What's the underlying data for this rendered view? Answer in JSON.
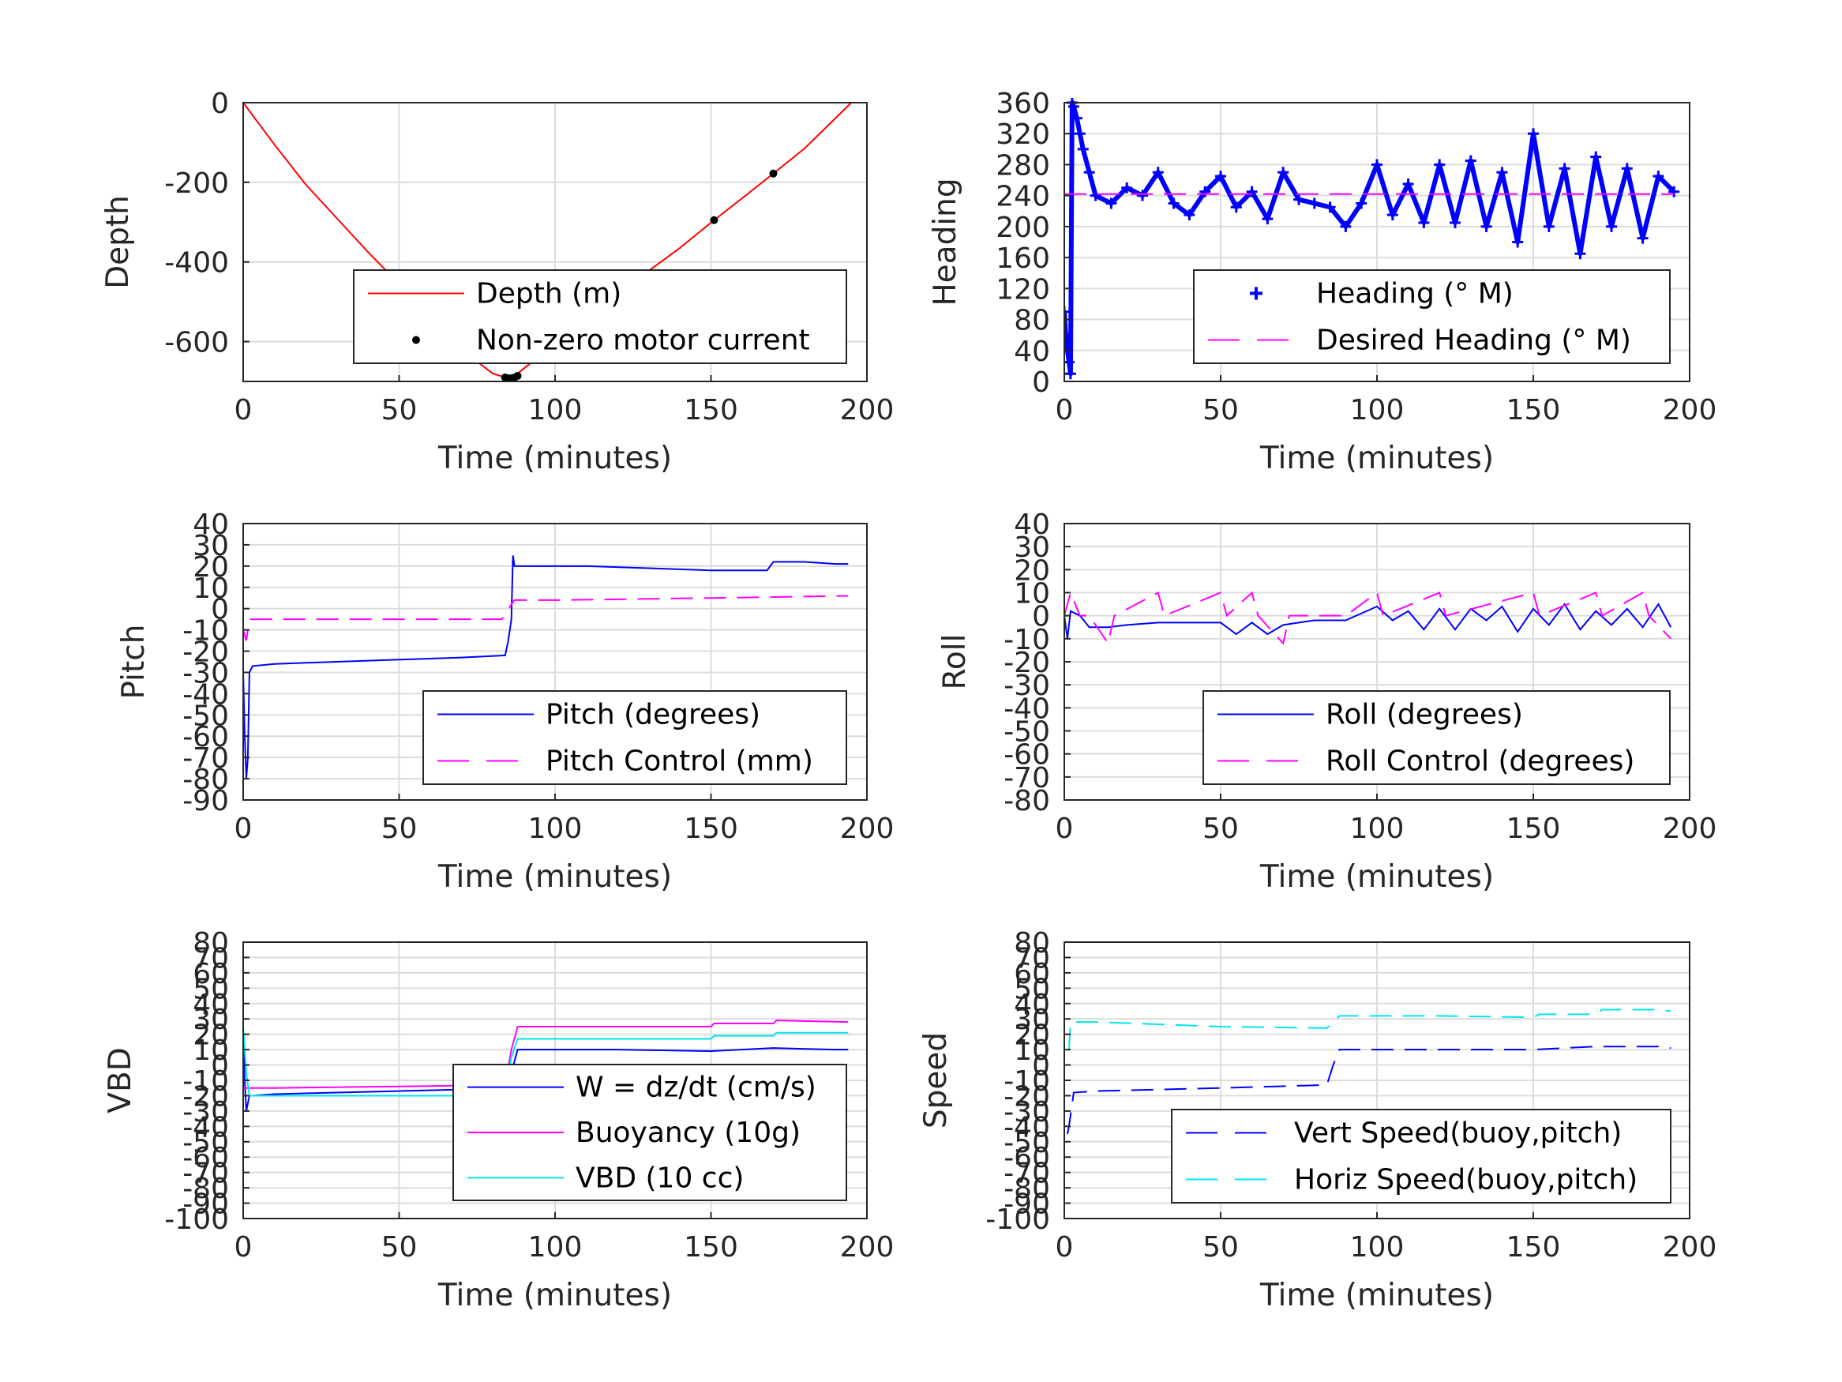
{
  "chart_data": [
    {
      "id": "depth",
      "type": "line",
      "xlabel": "Time (minutes)",
      "ylabel": "Depth",
      "xlim": [
        0,
        200
      ],
      "ylim": [
        -700,
        0
      ],
      "xticks": [
        0,
        50,
        100,
        150,
        200
      ],
      "yticks": [
        0,
        -200,
        -400,
        -600
      ],
      "grid": true,
      "legend_position": "lower-right",
      "series": [
        {
          "name": "Depth (m)",
          "color": "#ff0000",
          "style": "solid",
          "x": [
            0,
            10,
            20,
            30,
            40,
            50,
            60,
            70,
            80,
            84,
            86,
            88,
            100,
            120,
            140,
            151,
            160,
            170,
            180,
            195
          ],
          "y": [
            0,
            -105,
            -205,
            -290,
            -375,
            -455,
            -540,
            -620,
            -680,
            -690,
            -690,
            -680,
            -605,
            -480,
            -365,
            -295,
            -240,
            -178,
            -115,
            0
          ]
        },
        {
          "name": "Non-zero motor current",
          "color": "#000000",
          "style": "markers",
          "x": [
            84,
            85,
            86,
            87,
            88,
            151,
            170
          ],
          "y": [
            -690,
            -692,
            -692,
            -690,
            -686,
            -295,
            -178
          ]
        }
      ]
    },
    {
      "id": "heading",
      "type": "line",
      "xlabel": "Time (minutes)",
      "ylabel": "Heading",
      "xlim": [
        0,
        200
      ],
      "ylim": [
        0,
        360
      ],
      "xticks": [
        0,
        50,
        100,
        150,
        200
      ],
      "yticks": [
        0,
        40,
        80,
        120,
        160,
        200,
        240,
        280,
        320,
        360
      ],
      "grid": true,
      "legend_position": "lower-right",
      "series": [
        {
          "name": "Heading (° M)",
          "color": "#0000ff",
          "style": "plus-markers",
          "x": [
            0,
            0.5,
            1,
            1.5,
            2,
            2.5,
            3,
            4,
            5,
            6,
            8,
            10,
            15,
            20,
            25,
            30,
            35,
            40,
            45,
            50,
            55,
            60,
            65,
            70,
            75,
            80,
            85,
            90,
            95,
            100,
            105,
            110,
            115,
            120,
            125,
            130,
            135,
            140,
            145,
            150,
            155,
            160,
            165,
            170,
            175,
            180,
            185,
            190,
            195
          ],
          "y": [
            90,
            60,
            40,
            25,
            10,
            360,
            355,
            340,
            320,
            300,
            270,
            240,
            230,
            250,
            240,
            270,
            230,
            215,
            245,
            265,
            225,
            245,
            210,
            270,
            235,
            230,
            225,
            200,
            230,
            280,
            215,
            255,
            205,
            280,
            205,
            285,
            200,
            270,
            180,
            320,
            200,
            275,
            165,
            290,
            200,
            275,
            185,
            265,
            245
          ]
        },
        {
          "name": "Desired Heading (° M)",
          "color": "#ff00ff",
          "style": "dashed",
          "x": [
            0,
            195
          ],
          "y": [
            242,
            242
          ]
        }
      ]
    },
    {
      "id": "pitch",
      "type": "line",
      "xlabel": "Time (minutes)",
      "ylabel": "Pitch",
      "xlim": [
        0,
        200
      ],
      "ylim": [
        -90,
        40
      ],
      "xticks": [
        0,
        50,
        100,
        150,
        200
      ],
      "yticks": [
        -90,
        -80,
        -70,
        -60,
        -50,
        -40,
        -30,
        -20,
        -10,
        0,
        10,
        20,
        30,
        40
      ],
      "grid": true,
      "legend_position": "lower-right",
      "series": [
        {
          "name": "Pitch (degrees)",
          "color": "#0000ff",
          "style": "solid",
          "x": [
            0,
            0.5,
            1,
            1.5,
            2,
            3,
            10,
            30,
            50,
            70,
            84,
            85,
            86,
            86.5,
            87,
            90,
            110,
            130,
            150,
            168,
            170,
            180,
            190,
            194
          ],
          "y": [
            -30,
            -60,
            -80,
            -70,
            -30,
            -27,
            -26,
            -25,
            -24,
            -23,
            -22,
            -15,
            -5,
            25,
            20,
            20,
            20,
            19,
            18,
            18,
            22,
            22,
            21,
            21
          ]
        },
        {
          "name": "Pitch Control (mm)",
          "color": "#ff00ff",
          "style": "dashed",
          "x": [
            0,
            1,
            1.5,
            2,
            83,
            84,
            86,
            87,
            100,
            150,
            194
          ],
          "y": [
            -10,
            -15,
            -10,
            -5,
            -5,
            -3,
            2,
            4,
            4,
            5,
            6
          ]
        }
      ]
    },
    {
      "id": "roll",
      "type": "line",
      "xlabel": "Time (minutes)",
      "ylabel": "Roll",
      "xlim": [
        0,
        200
      ],
      "ylim": [
        -80,
        40
      ],
      "xticks": [
        0,
        50,
        100,
        150,
        200
      ],
      "yticks": [
        -80,
        -70,
        -60,
        -50,
        -40,
        -30,
        -20,
        -10,
        0,
        10,
        20,
        30,
        40
      ],
      "grid": true,
      "legend_position": "lower-right",
      "series": [
        {
          "name": "Roll (degrees)",
          "color": "#0000ff",
          "style": "solid",
          "x": [
            0,
            1,
            2,
            5,
            8,
            14,
            20,
            30,
            40,
            50,
            55,
            60,
            65,
            70,
            80,
            90,
            100,
            105,
            110,
            115,
            120,
            125,
            130,
            135,
            140,
            145,
            150,
            155,
            160,
            165,
            170,
            175,
            180,
            185,
            190,
            194
          ],
          "y": [
            0,
            -10,
            2,
            0,
            -5,
            -5,
            -4,
            -3,
            -3,
            -3,
            -8,
            -3,
            -8,
            -4,
            -2,
            -2,
            4,
            -2,
            2,
            -6,
            3,
            -6,
            3,
            -2,
            4,
            -7,
            3,
            -4,
            5,
            -6,
            2,
            -4,
            3,
            -5,
            5,
            -5
          ]
        },
        {
          "name": "Roll Control (degrees)",
          "color": "#ff00ff",
          "style": "dashed",
          "x": [
            0,
            2,
            5,
            8,
            14,
            16,
            30,
            32,
            50,
            52,
            60,
            62,
            70,
            72,
            90,
            100,
            102,
            120,
            122,
            150,
            152,
            170,
            172,
            185,
            187,
            194
          ],
          "y": [
            0,
            10,
            0,
            0,
            -12,
            0,
            10,
            0,
            10,
            0,
            10,
            0,
            -12,
            0,
            0,
            10,
            0,
            10,
            0,
            10,
            0,
            10,
            0,
            10,
            0,
            -10
          ]
        }
      ]
    },
    {
      "id": "vbd",
      "type": "line",
      "xlabel": "Time (minutes)",
      "ylabel": "VBD",
      "xlim": [
        0,
        200
      ],
      "ylim": [
        -100,
        80
      ],
      "xticks": [
        0,
        50,
        100,
        150,
        200
      ],
      "yticks": [
        -100,
        -90,
        -80,
        -70,
        -60,
        -50,
        -40,
        -30,
        -20,
        -10,
        0,
        10,
        20,
        30,
        40,
        50,
        60,
        70,
        80
      ],
      "grid": true,
      "legend_position": "lower-right",
      "series": [
        {
          "name": "W = dz/dt (cm/s)",
          "color": "#0000ff",
          "style": "solid",
          "x": [
            0,
            0.5,
            1,
            2,
            3,
            10,
            30,
            50,
            70,
            84,
            86,
            88,
            100,
            120,
            150,
            170,
            190,
            194
          ],
          "y": [
            20,
            -10,
            -30,
            -20,
            -20,
            -19,
            -18,
            -17,
            -16,
            -15,
            -5,
            10,
            10,
            10,
            9,
            11,
            10,
            10
          ]
        },
        {
          "name": "Buoyancy (10g)",
          "color": "#ff00ff",
          "style": "solid",
          "x": [
            0,
            2,
            10,
            50,
            84,
            86,
            88,
            150,
            151,
            170,
            171,
            194
          ],
          "y": [
            -15,
            -15,
            -15,
            -14,
            -13,
            10,
            25,
            25,
            27,
            27,
            29,
            28
          ]
        },
        {
          "name": "VBD (10 cc)",
          "color": "#00e5ee",
          "style": "solid",
          "x": [
            0,
            1,
            2,
            10,
            50,
            84,
            86,
            88,
            150,
            151,
            170,
            171,
            194
          ],
          "y": [
            25,
            -5,
            -20,
            -20,
            -20,
            -20,
            5,
            17,
            17,
            19,
            19,
            21,
            21
          ]
        }
      ]
    },
    {
      "id": "speed",
      "type": "line",
      "xlabel": "Time (minutes)",
      "ylabel": "Speed",
      "xlim": [
        0,
        200
      ],
      "ylim": [
        -100,
        80
      ],
      "xticks": [
        0,
        50,
        100,
        150,
        200
      ],
      "yticks": [
        -100,
        -90,
        -80,
        -70,
        -60,
        -50,
        -40,
        -30,
        -20,
        -10,
        0,
        10,
        20,
        30,
        40,
        50,
        60,
        70,
        80
      ],
      "grid": true,
      "legend_position": "lower-right",
      "series": [
        {
          "name": "Vert Speed(buoy,pitch)",
          "color": "#0000ff",
          "style": "dashed",
          "x": [
            1,
            1.5,
            3,
            10,
            50,
            84,
            86,
            88,
            120,
            150,
            170,
            190,
            194
          ],
          "y": [
            -45,
            -40,
            -18,
            -17,
            -15,
            -13,
            0,
            10,
            10,
            10,
            12,
            12,
            11
          ]
        },
        {
          "name": "Horiz Speed(buoy,pitch)",
          "color": "#00e5ee",
          "style": "dashed",
          "x": [
            1.5,
            2,
            3,
            10,
            50,
            84,
            86,
            88,
            120,
            150,
            152,
            170,
            172,
            190,
            194
          ],
          "y": [
            10,
            28,
            28,
            28,
            25,
            24,
            28,
            32,
            32,
            31,
            33,
            33,
            36,
            36,
            35
          ]
        }
      ]
    }
  ]
}
